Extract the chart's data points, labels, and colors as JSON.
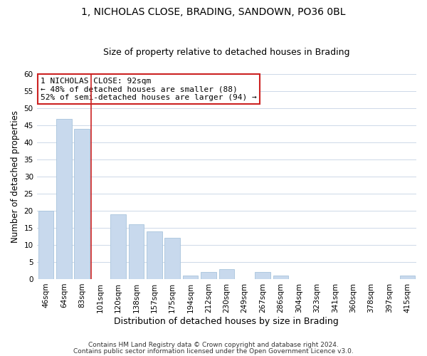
{
  "title": "1, NICHOLAS CLOSE, BRADING, SANDOWN, PO36 0BL",
  "subtitle": "Size of property relative to detached houses in Brading",
  "xlabel": "Distribution of detached houses by size in Brading",
  "ylabel": "Number of detached properties",
  "bar_labels": [
    "46sqm",
    "64sqm",
    "83sqm",
    "101sqm",
    "120sqm",
    "138sqm",
    "157sqm",
    "175sqm",
    "194sqm",
    "212sqm",
    "230sqm",
    "249sqm",
    "267sqm",
    "286sqm",
    "304sqm",
    "323sqm",
    "341sqm",
    "360sqm",
    "378sqm",
    "397sqm",
    "415sqm"
  ],
  "bar_values": [
    20,
    47,
    44,
    0,
    19,
    16,
    14,
    12,
    1,
    2,
    3,
    0,
    2,
    1,
    0,
    0,
    0,
    0,
    0,
    0,
    1
  ],
  "bar_color": "#c8d9ed",
  "bar_edge_color": "#a8c4dc",
  "ylim": [
    0,
    60
  ],
  "yticks": [
    0,
    5,
    10,
    15,
    20,
    25,
    30,
    35,
    40,
    45,
    50,
    55,
    60
  ],
  "red_line_x": 2.5,
  "red_line_color": "#cc2222",
  "annotation_title": "1 NICHOLAS CLOSE: 92sqm",
  "annotation_line2": "← 48% of detached houses are smaller (88)",
  "annotation_line3": "52% of semi-detached houses are larger (94) →",
  "annotation_box_color": "#ffffff",
  "annotation_box_edge_color": "#cc2222",
  "footer_line1": "Contains HM Land Registry data © Crown copyright and database right 2024.",
  "footer_line2": "Contains public sector information licensed under the Open Government Licence v3.0.",
  "background_color": "#ffffff",
  "grid_color": "#cdd8e8",
  "title_fontsize": 10,
  "subtitle_fontsize": 9,
  "tick_fontsize": 7.5,
  "ylabel_fontsize": 8.5,
  "xlabel_fontsize": 9,
  "annotation_fontsize": 8
}
